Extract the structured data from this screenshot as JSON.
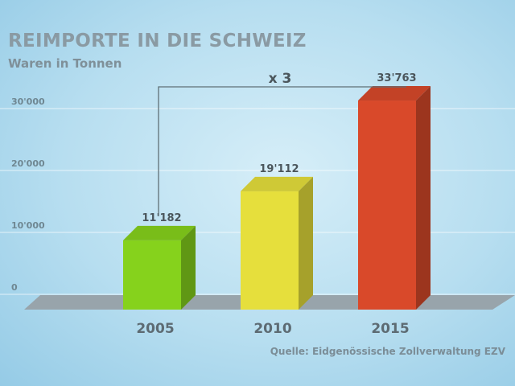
{
  "chart_data": {
    "type": "bar",
    "title": "REIMPORTE IN DIE SCHWEIZ",
    "subtitle": "Waren in Tonnen",
    "categories": [
      "2005",
      "2010",
      "2015"
    ],
    "values": [
      11182,
      19112,
      33763
    ],
    "value_labels": [
      "11'182",
      "19'112",
      "33'763"
    ],
    "colors": [
      "#86d21c",
      "#e6df3c",
      "#d9492a"
    ],
    "y_ticks": [
      {
        "value": 0,
        "label": "0"
      },
      {
        "value": 10000,
        "label": "10'000"
      },
      {
        "value": 20000,
        "label": "20'000"
      },
      {
        "value": 30000,
        "label": "30'000"
      }
    ],
    "ylim": [
      0,
      35000
    ],
    "grid": true,
    "annotation": "x 3",
    "source": "Quelle: Eidgenössische Zollverwaltung EZV"
  }
}
